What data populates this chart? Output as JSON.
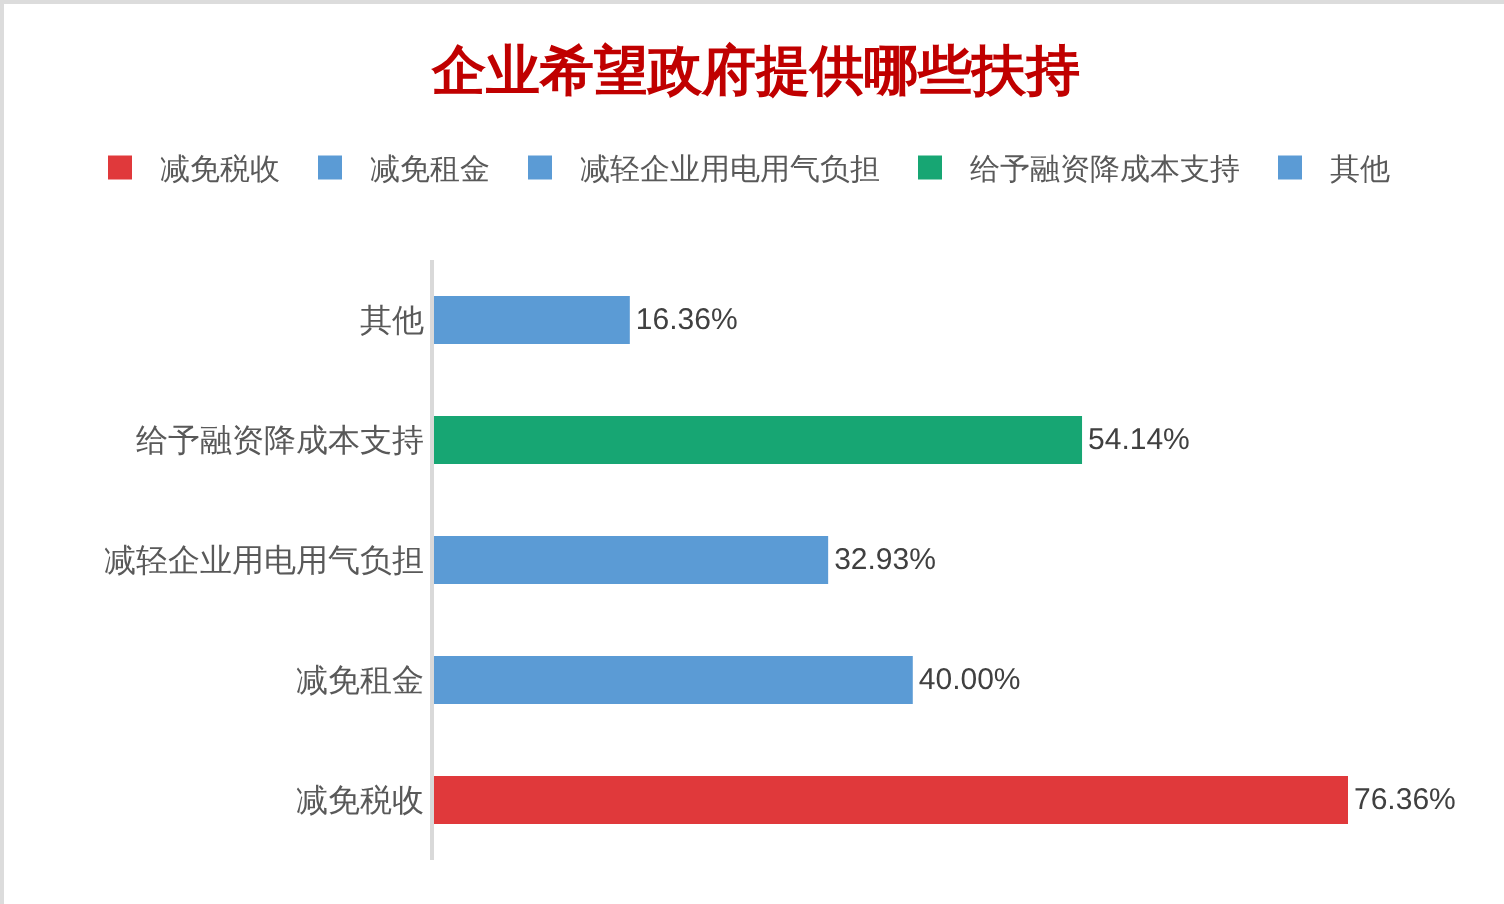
{
  "chart_data": {
    "type": "bar",
    "orientation": "horizontal",
    "title": "企业希望政府提供哪些扶持",
    "categories": [
      "其他",
      "给予融资降成本支持",
      "减轻企业用电用气负担",
      "减免租金",
      "减免税收"
    ],
    "series": [
      {
        "name": "减免税收",
        "color": "#e0393b",
        "values": [
          null,
          null,
          null,
          null,
          76.36
        ],
        "value_labels": [
          null,
          null,
          null,
          null,
          "76.36%"
        ]
      },
      {
        "name": "减免租金",
        "color": "#5b9bd5",
        "values": [
          null,
          null,
          null,
          40.0,
          null
        ],
        "value_labels": [
          null,
          null,
          null,
          "40.00%",
          null
        ]
      },
      {
        "name": "减轻企业用电用气负担",
        "color": "#5b9bd5",
        "values": [
          null,
          null,
          32.93,
          null,
          null
        ],
        "value_labels": [
          null,
          null,
          "32.93%",
          null,
          null
        ]
      },
      {
        "name": "给予融资降成本支持",
        "color": "#17a673",
        "values": [
          null,
          54.14,
          null,
          null,
          null
        ],
        "value_labels": [
          null,
          "54.14%",
          null,
          null,
          null
        ]
      },
      {
        "name": "其他",
        "color": "#5b9bd5",
        "values": [
          16.36,
          null,
          null,
          null,
          null
        ],
        "value_labels": [
          "16.36%",
          null,
          null,
          null,
          null
        ]
      }
    ],
    "legend": "top"
  }
}
